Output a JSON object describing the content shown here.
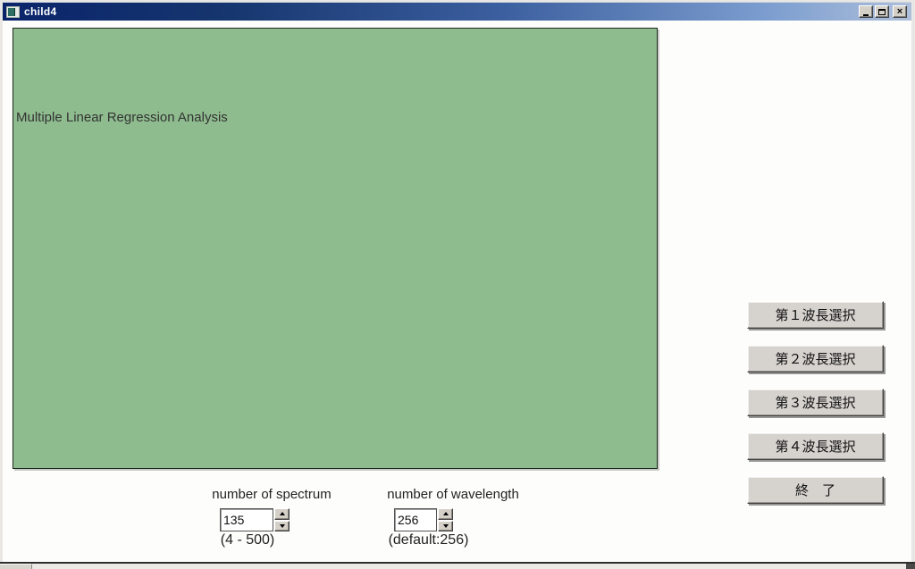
{
  "window": {
    "title": "child4"
  },
  "panel": {
    "title": "Multiple Linear Regression Analysis"
  },
  "wavelength_buttons": [
    {
      "label": "第１波長選択"
    },
    {
      "label": "第２波長選択"
    },
    {
      "label": "第３波長選択"
    },
    {
      "label": "第４波長選択"
    }
  ],
  "exit_button": {
    "label": "終　了"
  },
  "spectrum_spinner": {
    "label": "number of spectrum",
    "value": "135",
    "range_hint": "(4 - 500)"
  },
  "wavelength_spinner": {
    "label": "number of wavelength",
    "value": "256",
    "default_hint": "(default:256)"
  },
  "icons": {
    "close_glyph": "×",
    "window_icon": "form-icon",
    "minimize": "minimize-icon",
    "maximize": "maximize-icon",
    "spinner_up": "up-arrow-icon",
    "spinner_down": "down-arrow-icon"
  },
  "colors": {
    "panel_green": "#8fbc8f",
    "panel_border": "#1e281e",
    "titlebar_gradient_start": "#0a246a",
    "titlebar_gradient_end": "#aebfda",
    "button_face": "#d6d3ce",
    "client_background": "#fdfdfb",
    "title_text": "#ffffff"
  }
}
